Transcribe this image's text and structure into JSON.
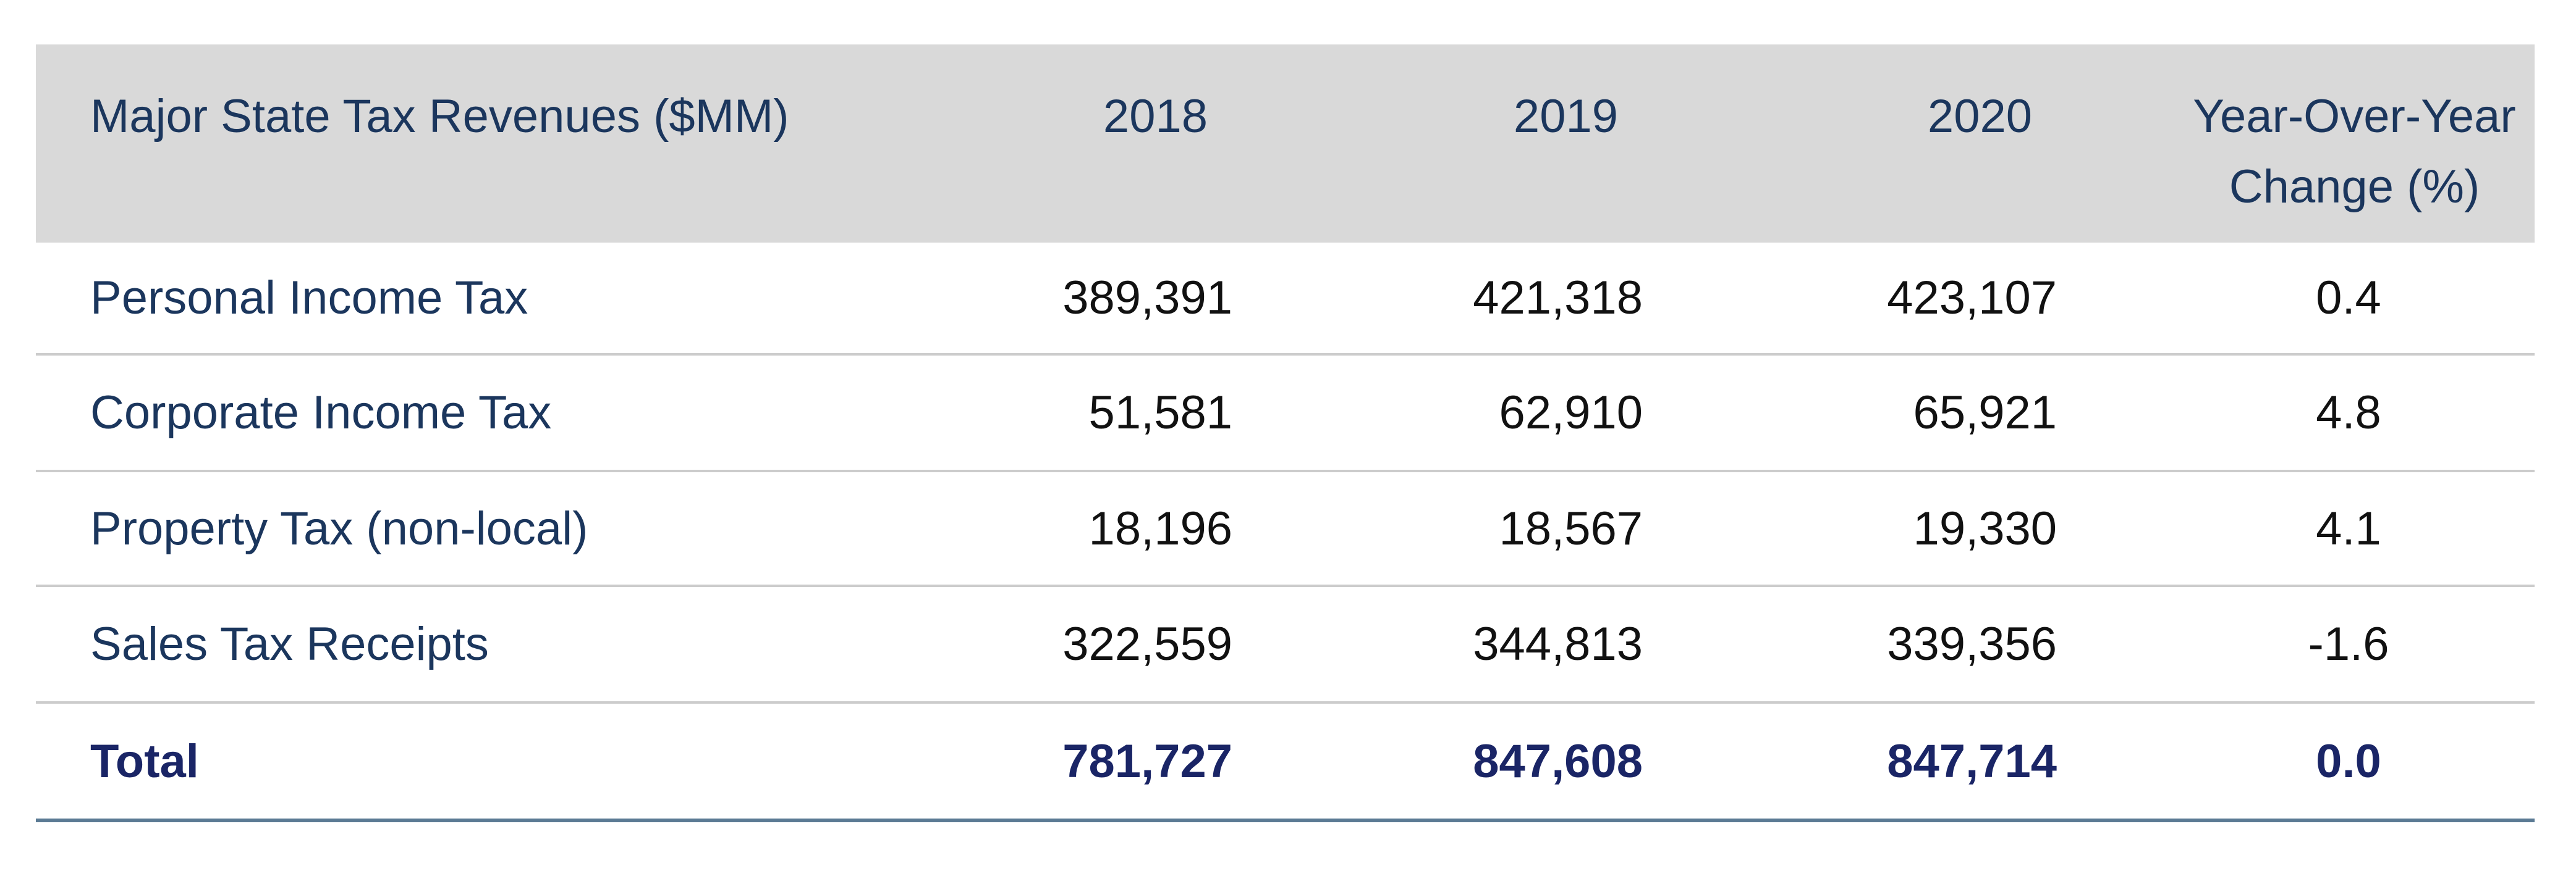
{
  "table": {
    "headers": {
      "label": "Major State Tax Revenues ($MM)",
      "y2018": "2018",
      "y2019": "2019",
      "y2020": "2020",
      "yoy_line1": "Year-Over-Year",
      "yoy_line2": "Change (%)"
    },
    "rows": [
      {
        "label": "Personal Income Tax",
        "y2018": "389,391",
        "y2019": "421,318",
        "y2020": "423,107",
        "yoy": "0.4"
      },
      {
        "label": "Corporate Income Tax",
        "y2018": "51,581",
        "y2019": "62,910",
        "y2020": "65,921",
        "yoy": "4.8"
      },
      {
        "label": "Property Tax (non-local)",
        "y2018": "18,196",
        "y2019": "18,567",
        "y2020": "19,330",
        "yoy": "4.1"
      },
      {
        "label": "Sales Tax Receipts",
        "y2018": "322,559",
        "y2019": "344,813",
        "y2020": "339,356",
        "yoy": "-1.6"
      }
    ],
    "total": {
      "label": "Total",
      "y2018": "781,727",
      "y2019": "847,608",
      "y2020": "847,714",
      "yoy": "0.0"
    }
  },
  "colors": {
    "header_bg": "#d9d9d9",
    "label_text": "#1b365d",
    "total_text": "#1a2566",
    "bottom_rule": "#5b7a94"
  }
}
